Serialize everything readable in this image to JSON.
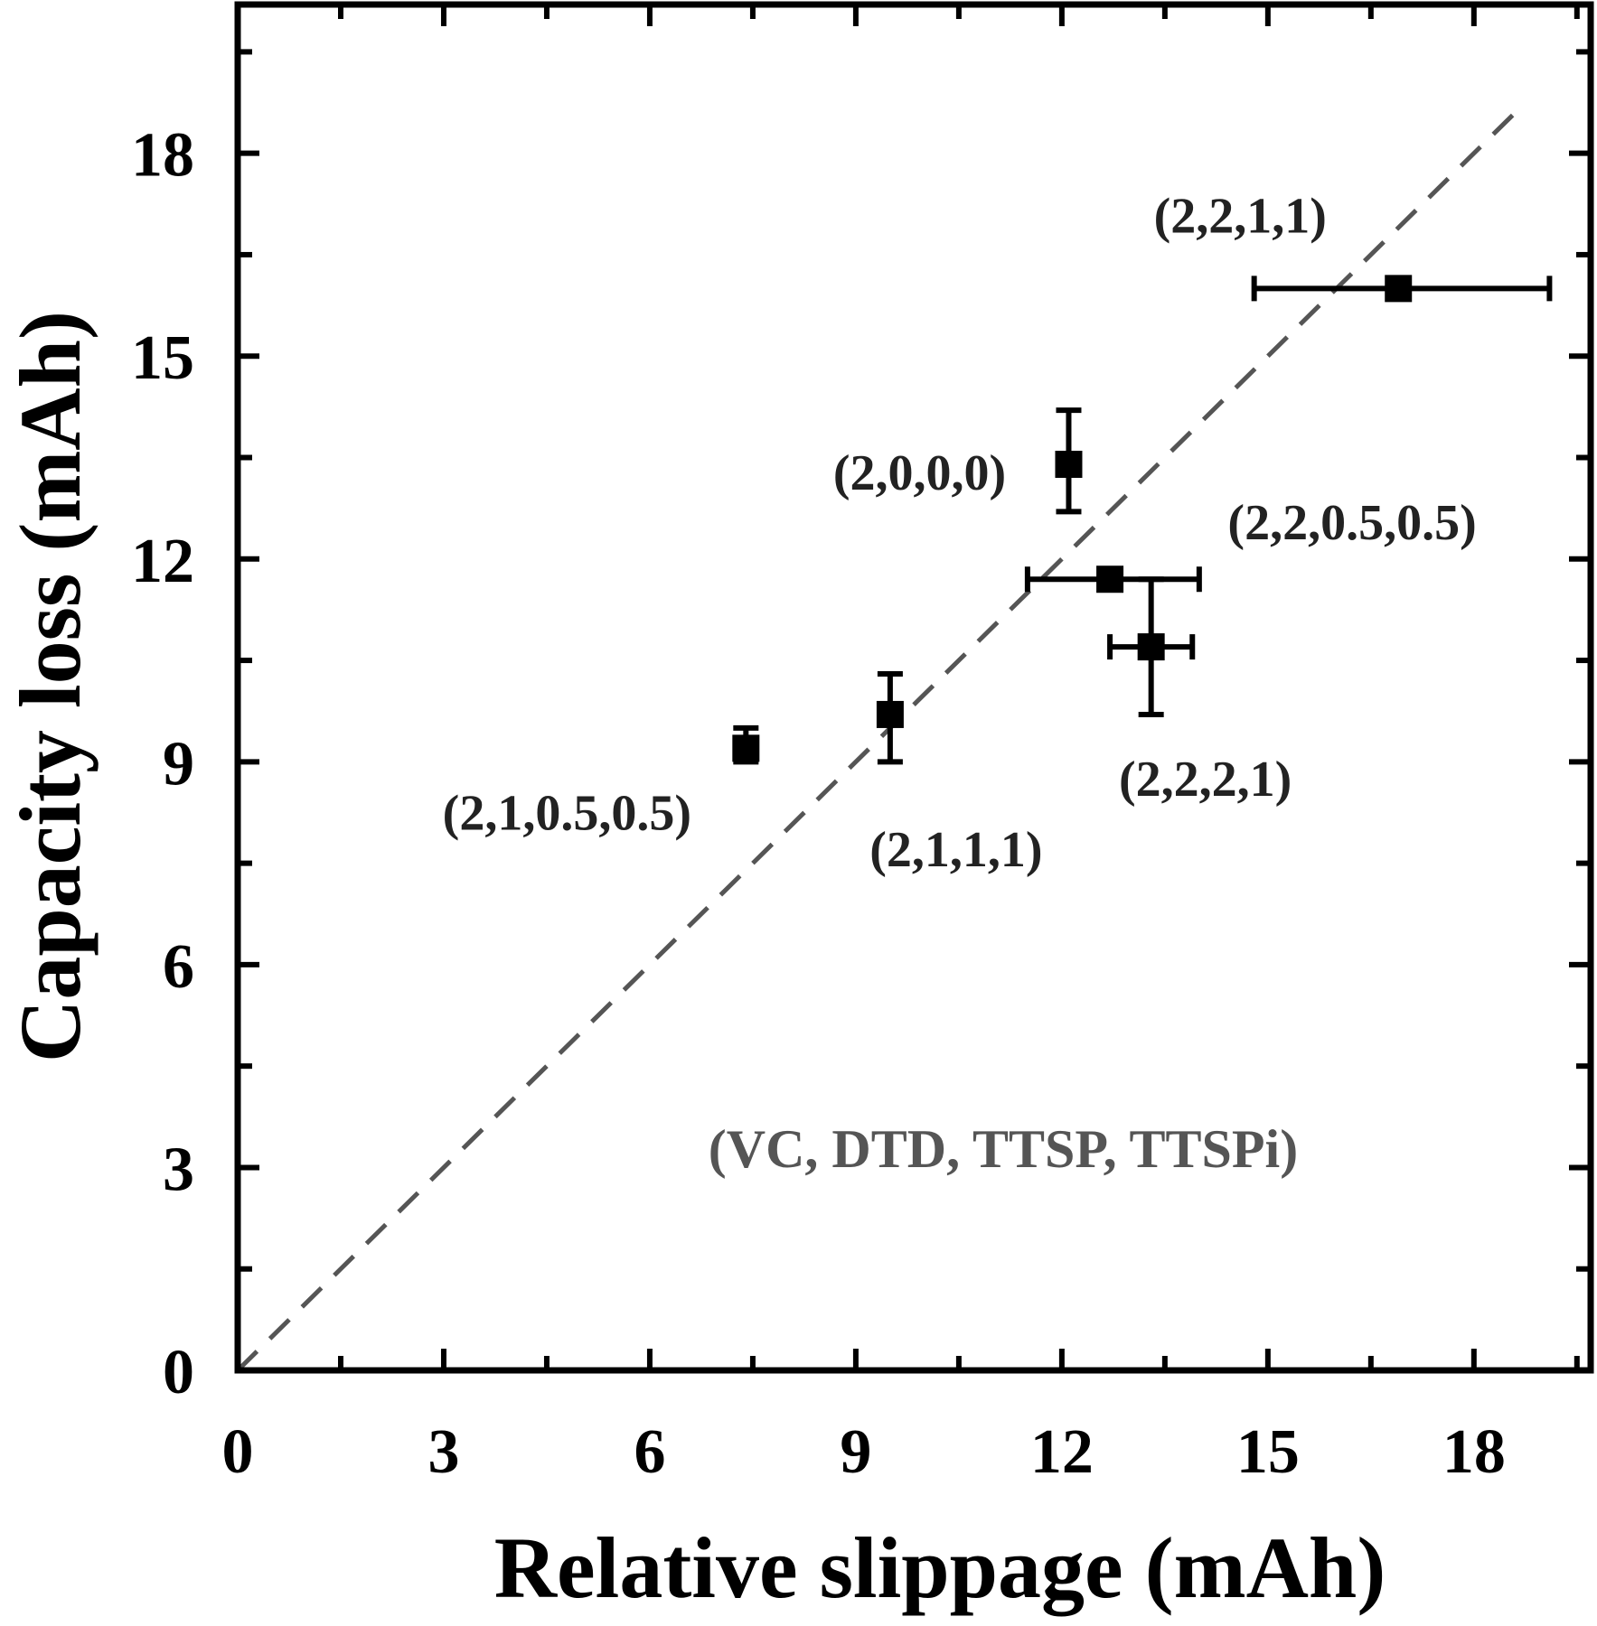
{
  "chart_data": {
    "type": "scatter",
    "xlabel": "Relative slippage (mAh)",
    "ylabel": "Capacity loss (mAh)",
    "xlim": [
      0,
      19.7
    ],
    "ylim": [
      0,
      20.2
    ],
    "xticks": [
      0,
      3,
      6,
      9,
      12,
      15,
      18
    ],
    "yticks": [
      0,
      3,
      6,
      9,
      12,
      15,
      18
    ],
    "minor_tick_step": 1.5,
    "annotation": "(VC, DTD, TTSP, TTSPi)",
    "reference_line": {
      "style": "dashed",
      "color": "#555555",
      "from": [
        0,
        0
      ],
      "to": [
        18.7,
        18.7
      ]
    },
    "points": [
      {
        "label": "(2,2,1,1)",
        "x": 16.9,
        "y": 16.0,
        "xerr": [
          14.8,
          19.1
        ],
        "yerr": null
      },
      {
        "label": "(2,0,0,0)",
        "x": 12.1,
        "y": 13.4,
        "xerr": null,
        "yerr": [
          12.7,
          14.2
        ]
      },
      {
        "label": "(2,2,0.5,0.5)",
        "x": 12.7,
        "y": 11.7,
        "xerr": [
          11.5,
          14.0
        ],
        "yerr": null
      },
      {
        "label": "(2,2,2,1)",
        "x": 13.3,
        "y": 10.7,
        "xerr": [
          12.7,
          13.9
        ],
        "yerr": [
          9.7,
          11.7
        ]
      },
      {
        "label": "(2,1,1,1)",
        "x": 9.5,
        "y": 9.7,
        "xerr": null,
        "yerr": [
          9.0,
          10.3
        ]
      },
      {
        "label": "(2,1,0.5,0.5)",
        "x": 7.4,
        "y": 9.2,
        "xerr": null,
        "yerr": [
          9.0,
          9.5
        ]
      }
    ],
    "grid": false,
    "legend": "none"
  }
}
